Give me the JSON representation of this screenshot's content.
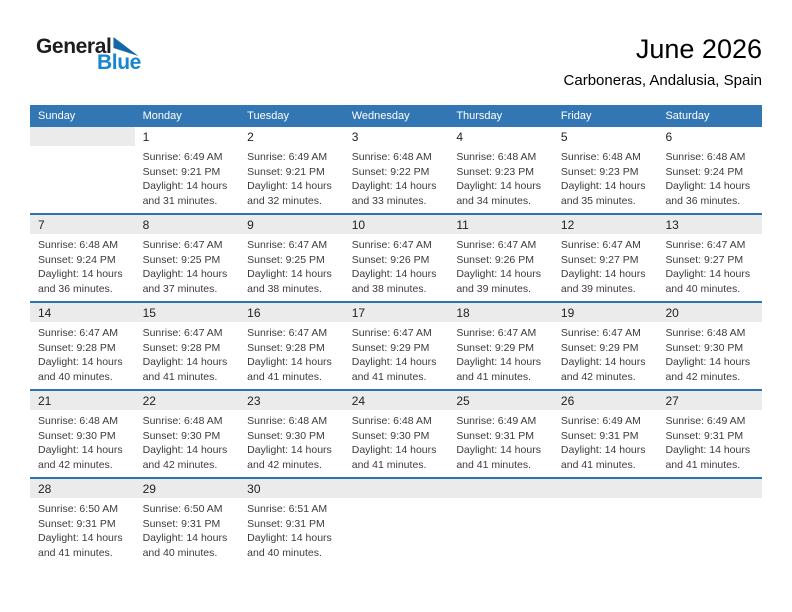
{
  "logo": {
    "text_top": "General",
    "text_bottom": "Blue",
    "flag_icon": "triangle-flag-icon"
  },
  "title": {
    "month_year": "June 2026",
    "location": "Carboneras, Andalusia, Spain"
  },
  "colors": {
    "header_blue": "#3277B3",
    "divider_blue": "#2E74B5",
    "band_gray": "#EBEBEB",
    "logo_blue": "#1786D1",
    "flag_blue": "#1467A8"
  },
  "weekday_headers": [
    "Sunday",
    "Monday",
    "Tuesday",
    "Wednesday",
    "Thursday",
    "Friday",
    "Saturday"
  ],
  "weeks": [
    {
      "days": [
        {
          "date": "",
          "lines": []
        },
        {
          "date": "1",
          "lines": [
            "Sunrise: 6:49 AM",
            "Sunset: 9:21 PM",
            "Daylight: 14 hours",
            "and 31 minutes."
          ]
        },
        {
          "date": "2",
          "lines": [
            "Sunrise: 6:49 AM",
            "Sunset: 9:21 PM",
            "Daylight: 14 hours",
            "and 32 minutes."
          ]
        },
        {
          "date": "3",
          "lines": [
            "Sunrise: 6:48 AM",
            "Sunset: 9:22 PM",
            "Daylight: 14 hours",
            "and 33 minutes."
          ]
        },
        {
          "date": "4",
          "lines": [
            "Sunrise: 6:48 AM",
            "Sunset: 9:23 PM",
            "Daylight: 14 hours",
            "and 34 minutes."
          ]
        },
        {
          "date": "5",
          "lines": [
            "Sunrise: 6:48 AM",
            "Sunset: 9:23 PM",
            "Daylight: 14 hours",
            "and 35 minutes."
          ]
        },
        {
          "date": "6",
          "lines": [
            "Sunrise: 6:48 AM",
            "Sunset: 9:24 PM",
            "Daylight: 14 hours",
            "and 36 minutes."
          ]
        }
      ]
    },
    {
      "days": [
        {
          "date": "7",
          "lines": [
            "Sunrise: 6:48 AM",
            "Sunset: 9:24 PM",
            "Daylight: 14 hours",
            "and 36 minutes."
          ]
        },
        {
          "date": "8",
          "lines": [
            "Sunrise: 6:47 AM",
            "Sunset: 9:25 PM",
            "Daylight: 14 hours",
            "and 37 minutes."
          ]
        },
        {
          "date": "9",
          "lines": [
            "Sunrise: 6:47 AM",
            "Sunset: 9:25 PM",
            "Daylight: 14 hours",
            "and 38 minutes."
          ]
        },
        {
          "date": "10",
          "lines": [
            "Sunrise: 6:47 AM",
            "Sunset: 9:26 PM",
            "Daylight: 14 hours",
            "and 38 minutes."
          ]
        },
        {
          "date": "11",
          "lines": [
            "Sunrise: 6:47 AM",
            "Sunset: 9:26 PM",
            "Daylight: 14 hours",
            "and 39 minutes."
          ]
        },
        {
          "date": "12",
          "lines": [
            "Sunrise: 6:47 AM",
            "Sunset: 9:27 PM",
            "Daylight: 14 hours",
            "and 39 minutes."
          ]
        },
        {
          "date": "13",
          "lines": [
            "Sunrise: 6:47 AM",
            "Sunset: 9:27 PM",
            "Daylight: 14 hours",
            "and 40 minutes."
          ]
        }
      ]
    },
    {
      "days": [
        {
          "date": "14",
          "lines": [
            "Sunrise: 6:47 AM",
            "Sunset: 9:28 PM",
            "Daylight: 14 hours",
            "and 40 minutes."
          ]
        },
        {
          "date": "15",
          "lines": [
            "Sunrise: 6:47 AM",
            "Sunset: 9:28 PM",
            "Daylight: 14 hours",
            "and 41 minutes."
          ]
        },
        {
          "date": "16",
          "lines": [
            "Sunrise: 6:47 AM",
            "Sunset: 9:28 PM",
            "Daylight: 14 hours",
            "and 41 minutes."
          ]
        },
        {
          "date": "17",
          "lines": [
            "Sunrise: 6:47 AM",
            "Sunset: 9:29 PM",
            "Daylight: 14 hours",
            "and 41 minutes."
          ]
        },
        {
          "date": "18",
          "lines": [
            "Sunrise: 6:47 AM",
            "Sunset: 9:29 PM",
            "Daylight: 14 hours",
            "and 41 minutes."
          ]
        },
        {
          "date": "19",
          "lines": [
            "Sunrise: 6:47 AM",
            "Sunset: 9:29 PM",
            "Daylight: 14 hours",
            "and 42 minutes."
          ]
        },
        {
          "date": "20",
          "lines": [
            "Sunrise: 6:48 AM",
            "Sunset: 9:30 PM",
            "Daylight: 14 hours",
            "and 42 minutes."
          ]
        }
      ]
    },
    {
      "days": [
        {
          "date": "21",
          "lines": [
            "Sunrise: 6:48 AM",
            "Sunset: 9:30 PM",
            "Daylight: 14 hours",
            "and 42 minutes."
          ]
        },
        {
          "date": "22",
          "lines": [
            "Sunrise: 6:48 AM",
            "Sunset: 9:30 PM",
            "Daylight: 14 hours",
            "and 42 minutes."
          ]
        },
        {
          "date": "23",
          "lines": [
            "Sunrise: 6:48 AM",
            "Sunset: 9:30 PM",
            "Daylight: 14 hours",
            "and 42 minutes."
          ]
        },
        {
          "date": "24",
          "lines": [
            "Sunrise: 6:48 AM",
            "Sunset: 9:30 PM",
            "Daylight: 14 hours",
            "and 41 minutes."
          ]
        },
        {
          "date": "25",
          "lines": [
            "Sunrise: 6:49 AM",
            "Sunset: 9:31 PM",
            "Daylight: 14 hours",
            "and 41 minutes."
          ]
        },
        {
          "date": "26",
          "lines": [
            "Sunrise: 6:49 AM",
            "Sunset: 9:31 PM",
            "Daylight: 14 hours",
            "and 41 minutes."
          ]
        },
        {
          "date": "27",
          "lines": [
            "Sunrise: 6:49 AM",
            "Sunset: 9:31 PM",
            "Daylight: 14 hours",
            "and 41 minutes."
          ]
        }
      ]
    },
    {
      "days": [
        {
          "date": "28",
          "lines": [
            "Sunrise: 6:50 AM",
            "Sunset: 9:31 PM",
            "Daylight: 14 hours",
            "and 41 minutes."
          ]
        },
        {
          "date": "29",
          "lines": [
            "Sunrise: 6:50 AM",
            "Sunset: 9:31 PM",
            "Daylight: 14 hours",
            "and 40 minutes."
          ]
        },
        {
          "date": "30",
          "lines": [
            "Sunrise: 6:51 AM",
            "Sunset: 9:31 PM",
            "Daylight: 14 hours",
            "and 40 minutes."
          ]
        },
        {
          "date": "",
          "lines": []
        },
        {
          "date": "",
          "lines": []
        },
        {
          "date": "",
          "lines": []
        },
        {
          "date": "",
          "lines": []
        }
      ]
    }
  ]
}
